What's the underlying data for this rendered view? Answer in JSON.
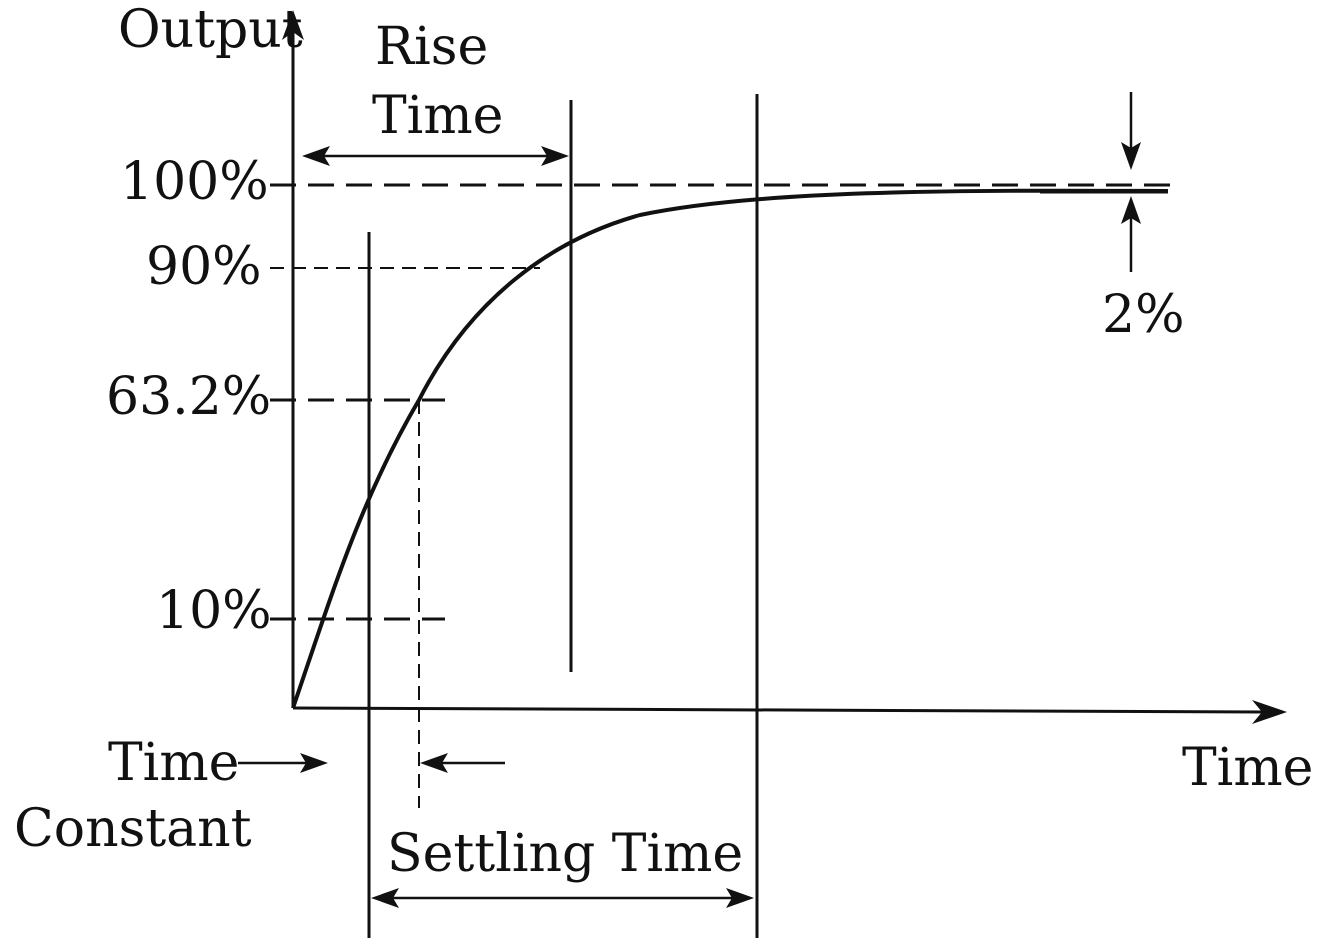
{
  "labels": {
    "output": "Output",
    "time_axis": "Time",
    "rise_time_line1": "Rise",
    "rise_time_line2": "Time",
    "pct_100": "100%",
    "pct_90": "90%",
    "pct_63": "63.2%",
    "pct_10": "10%",
    "tolerance": "2%",
    "time_constant_line1": "Time",
    "time_constant_line2": "Constant",
    "settling_time": "Settling Time"
  }
}
